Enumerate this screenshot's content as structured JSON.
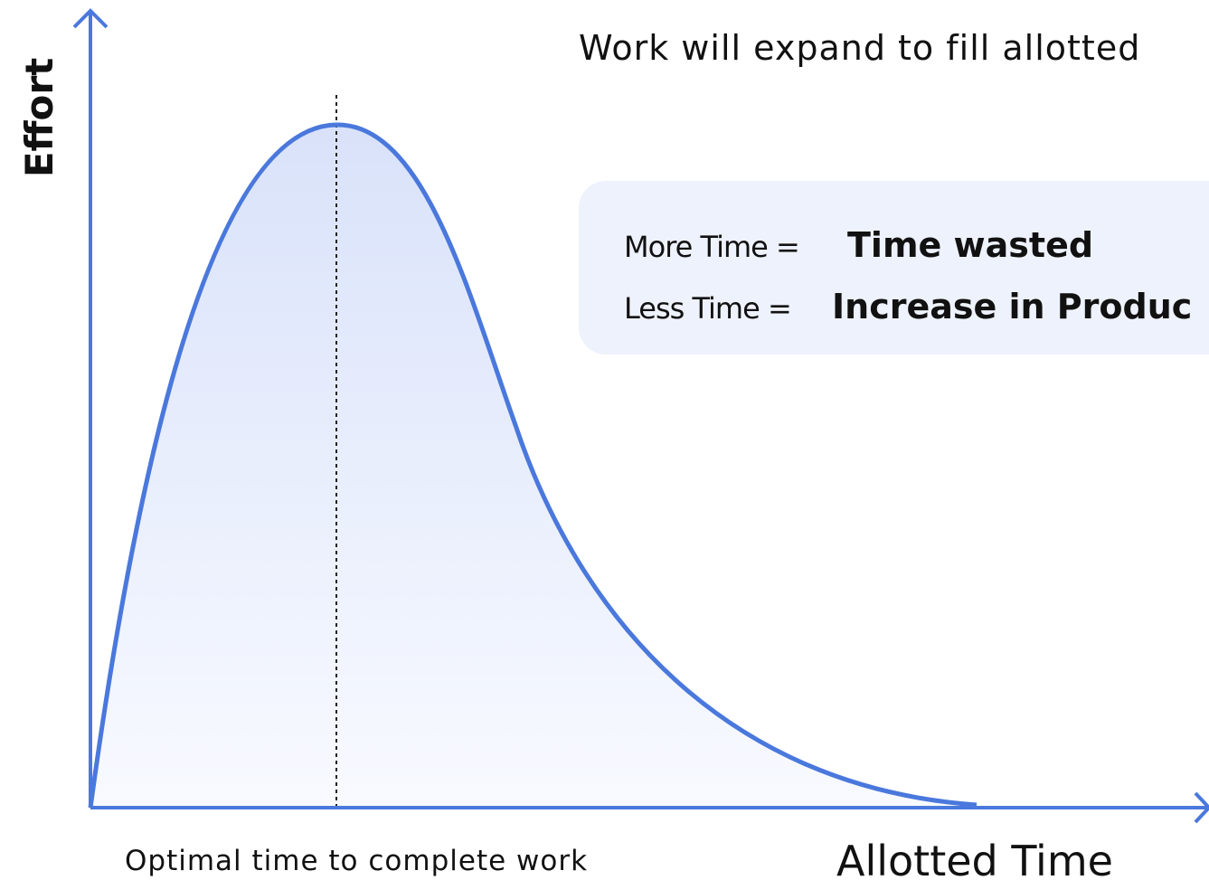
{
  "header": {
    "title": "Work will expand to fill allotted"
  },
  "axes": {
    "y_label": "Effort",
    "x_label": "Allotted Time"
  },
  "annotation": "Optimal time to complete work",
  "box": {
    "lines": [
      {
        "label": "More Time =",
        "value": "Time wasted"
      },
      {
        "label": "Less Time =",
        "value": "Increase in Produc"
      }
    ]
  }
}
